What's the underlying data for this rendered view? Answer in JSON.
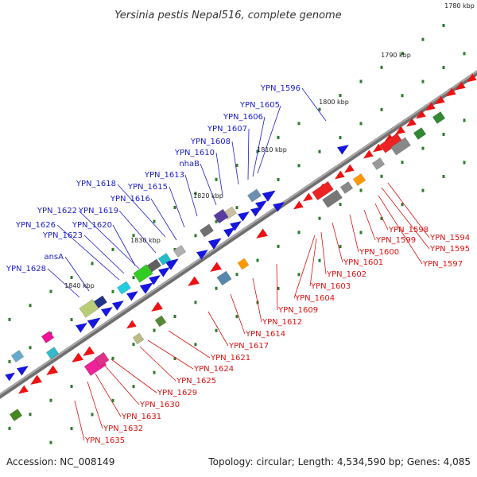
{
  "title": "Yersinia pestis Nepal516, complete genome",
  "footer": {
    "accession": "Accession: NC_008149",
    "summary": "Topology: circular; Length: 4,534,590 bp; Genes: 4,085"
  },
  "ticks": [
    "1780 kbp",
    "1790 kbp",
    "1800 kbp",
    "1810 kbp",
    "1820 kbp",
    "1830 kbp",
    "1840 kbp"
  ],
  "colors": {
    "forward_label": "#1c1ccc",
    "reverse_label": "#dd1111",
    "backbone": "#888888",
    "cds_blue": "#1616dd",
    "cds_red": "#ee1111",
    "tick_green": "#2c7a2c"
  },
  "labels_forward": [
    "YPN_1596",
    "YPN_1605",
    "YPN_1606",
    "YPN_1607",
    "YPN_1608",
    "YPN_1610",
    "nhaB",
    "YPN_1613",
    "YPN_1615",
    "YPN_1618",
    "YPN_1616",
    "YPN_1622",
    "YPN_1619",
    "YPN_1620",
    "YPN_1626",
    "YPN_1623",
    "ansA",
    "YPN_1628"
  ],
  "labels_reverse": [
    "YPN_1594",
    "YPN_1595",
    "YPN_1597",
    "YPN_1598",
    "YPN_1599",
    "YPN_1600",
    "YPN_1601",
    "YPN_1602",
    "YPN_1603",
    "YPN_1604",
    "YPN_1609",
    "YPN_1612",
    "YPN_1614",
    "YPN_1617",
    "YPN_1621",
    "YPN_1624",
    "YPN_1625",
    "YPN_1629",
    "YPN_1630",
    "YPN_1631",
    "YPN_1632",
    "YPN_1635"
  ]
}
